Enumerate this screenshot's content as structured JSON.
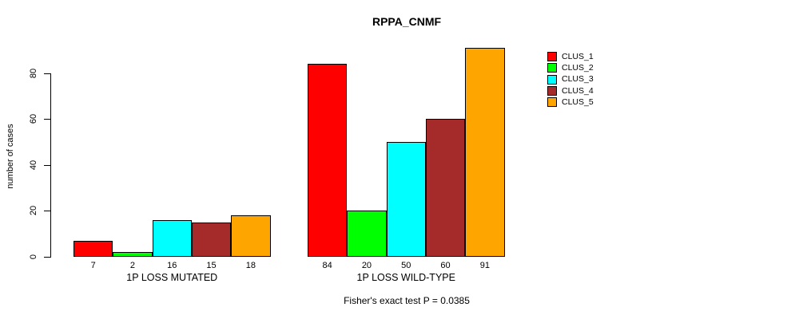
{
  "chart_data": {
    "type": "bar",
    "title": "RPPA_CNMF",
    "ylabel": "number of cases",
    "xlabel": "",
    "ylim": [
      0,
      91
    ],
    "yticks": [
      0,
      20,
      40,
      60,
      80
    ],
    "grid": false,
    "legend_position": "right",
    "background_color": "#ffffff",
    "bar_border_color": "#000000",
    "categories": [
      "1P LOSS MUTATED",
      "1P LOSS WILD-TYPE"
    ],
    "series": [
      {
        "name": "CLUS_1",
        "color": "#ff0000",
        "values": [
          7,
          84
        ]
      },
      {
        "name": "CLUS_2",
        "color": "#00ff00",
        "values": [
          2,
          20
        ]
      },
      {
        "name": "CLUS_3",
        "color": "#00ffff",
        "values": [
          16,
          50
        ]
      },
      {
        "name": "CLUS_4",
        "color": "#a52a2a",
        "values": [
          15,
          60
        ]
      },
      {
        "name": "CLUS_5",
        "color": "#ffa500",
        "values": [
          18,
          91
        ]
      }
    ],
    "values_shown_below_bars": true,
    "footnote": "Fisher's exact test P = 0.0385"
  }
}
